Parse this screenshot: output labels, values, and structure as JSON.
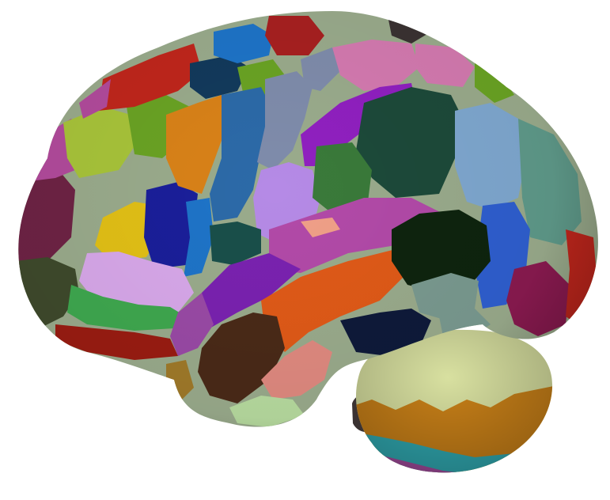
{
  "image": {
    "subject": "brain-surface-parcellation",
    "background_color": "#ffffff",
    "shade_color": "#000000"
  },
  "regions": [
    {
      "id": "frontal-pole-maroon",
      "color": "#6e2345"
    },
    {
      "id": "frontal-dark-olive",
      "color": "#3f4a2c"
    },
    {
      "id": "frontal-magenta",
      "color": "#b24b9c"
    },
    {
      "id": "frontal-lime",
      "color": "#a8c43a"
    },
    {
      "id": "frontal-green",
      "color": "#6aa324"
    },
    {
      "id": "frontal-red",
      "color": "#c0261c"
    },
    {
      "id": "frontal-sage",
      "color": "#9aab8c"
    },
    {
      "id": "frontal-yellow",
      "color": "#e2c016"
    },
    {
      "id": "frontal-navy",
      "color": "#1a1f9a"
    },
    {
      "id": "frontal-lavender",
      "color": "#d8a8ea"
    },
    {
      "id": "orbital-green",
      "color": "#3fa84f"
    },
    {
      "id": "orbital-red",
      "color": "#9a1c12"
    },
    {
      "id": "precentral-orange",
      "color": "#d98218"
    },
    {
      "id": "precentral-navy",
      "color": "#123a5c"
    },
    {
      "id": "central-blue",
      "color": "#2c6aa8"
    },
    {
      "id": "central-slate",
      "color": "#7f8cab"
    },
    {
      "id": "superior-blue",
      "color": "#1e74c8"
    },
    {
      "id": "superior-red",
      "color": "#a82020"
    },
    {
      "id": "postcentral-violet",
      "color": "#b58ae6"
    },
    {
      "id": "postcentral-teal",
      "color": "#194f4a"
    },
    {
      "id": "parietal-pink",
      "color": "#d47ab0"
    },
    {
      "id": "parietal-purple",
      "color": "#9020c0"
    },
    {
      "id": "parietal-darkgreen",
      "color": "#1d4a3a"
    },
    {
      "id": "supramarginal-green",
      "color": "#3a7a3a"
    },
    {
      "id": "occipital-lightblue",
      "color": "#7fa8d0"
    },
    {
      "id": "occipital-seagreen",
      "color": "#5f9a8a"
    },
    {
      "id": "occipital-blue",
      "color": "#2f5fd0"
    },
    {
      "id": "occipital-wine",
      "color": "#8a1a50"
    },
    {
      "id": "occipital-gray",
      "color": "#6a7a70"
    },
    {
      "id": "insula-teal",
      "color": "#2f4a4a"
    },
    {
      "id": "stg-magenta",
      "color": "#b24aa8"
    },
    {
      "id": "stg-purple",
      "color": "#7a22b0"
    },
    {
      "id": "stg-peach",
      "color": "#f0a088"
    },
    {
      "id": "mtg-orange",
      "color": "#e05a18"
    },
    {
      "id": "mtg-brown",
      "color": "#4a2a18"
    },
    {
      "id": "temporal-pole-violet",
      "color": "#9a4aa6"
    },
    {
      "id": "itg-salmon",
      "color": "#e08a80"
    },
    {
      "id": "itg-lightgreen",
      "color": "#b8dca0"
    },
    {
      "id": "temporal-olive",
      "color": "#a07a2a"
    },
    {
      "id": "angular-black",
      "color": "#0e240e"
    },
    {
      "id": "angular-gray",
      "color": "#7a9a90"
    },
    {
      "id": "occipitotemporal-navy",
      "color": "#0e1a3a"
    },
    {
      "id": "cerebellum-cream",
      "color": "#d8e0a0"
    },
    {
      "id": "cerebellum-orange",
      "color": "#c88018"
    },
    {
      "id": "cerebellum-cyan",
      "color": "#30a8b0"
    },
    {
      "id": "cerebellum-plum",
      "color": "#a04a9a"
    },
    {
      "id": "brainstem-dark",
      "color": "#3a3232"
    }
  ]
}
